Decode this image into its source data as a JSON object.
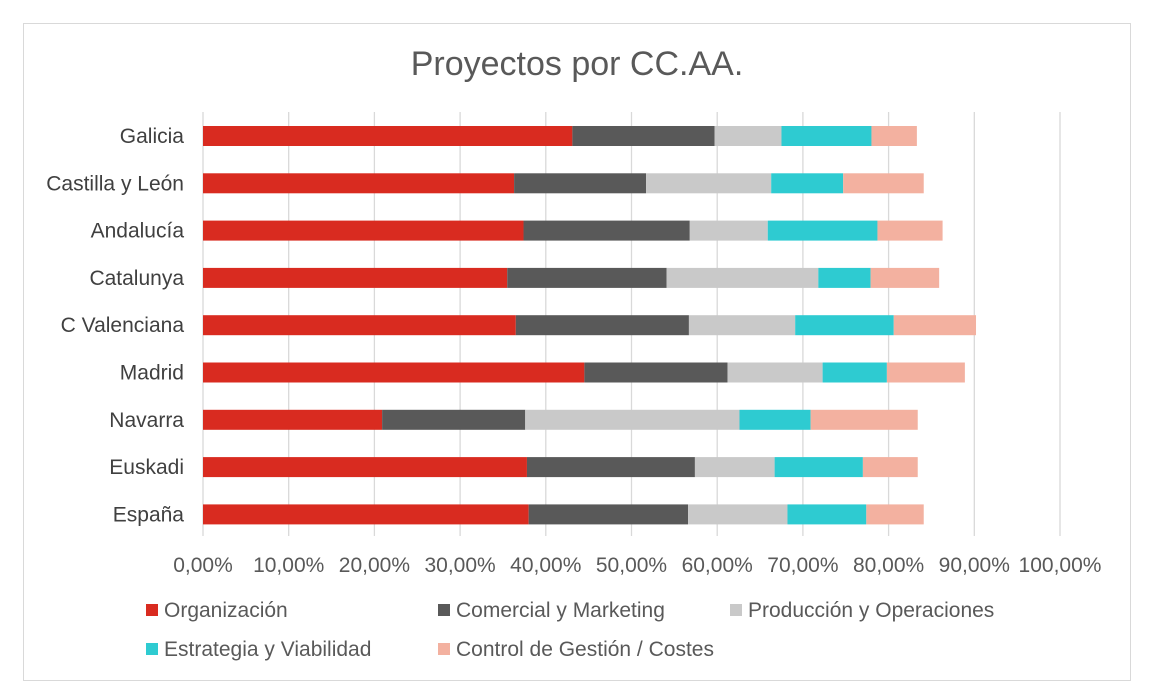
{
  "chart_data": {
    "type": "bar",
    "orientation": "horizontal",
    "stacked": true,
    "title": "Proyectos por CC.AA.",
    "categories": [
      "Galicia",
      "Castilla y León",
      "Andalucía",
      "Catalunya",
      "C Valenciana",
      "Madrid",
      "Navarra",
      "Euskadi",
      "España"
    ],
    "series": [
      {
        "name": "Organización",
        "color": "#d92b20",
        "values": [
          43.1,
          36.3,
          37.4,
          35.5,
          36.5,
          44.5,
          20.9,
          37.8,
          38.0
        ]
      },
      {
        "name": "Comercial y Marketing",
        "color": "#595959",
        "values": [
          16.6,
          15.4,
          19.4,
          18.6,
          20.2,
          16.7,
          16.7,
          19.6,
          18.6
        ]
      },
      {
        "name": "Producción y Operaciones",
        "color": "#c9c9c9",
        "values": [
          7.8,
          14.6,
          9.1,
          17.7,
          12.4,
          11.1,
          25.0,
          9.3,
          11.6
        ]
      },
      {
        "name": "Estrategia y Viabilidad",
        "color": "#2ecbd1",
        "values": [
          10.5,
          8.4,
          12.8,
          6.1,
          11.5,
          7.5,
          8.3,
          10.3,
          9.2
        ]
      },
      {
        "name": "Control de Gestión / Costes",
        "color": "#f3b1a0",
        "values": [
          5.3,
          9.4,
          7.6,
          8.0,
          9.6,
          9.1,
          12.5,
          6.4,
          6.7
        ]
      }
    ],
    "xlim": [
      0,
      100
    ],
    "xticks": [
      "0,00%",
      "10,00%",
      "20,00%",
      "30,00%",
      "40,00%",
      "50,00%",
      "60,00%",
      "70,00%",
      "80,00%",
      "90,00%",
      "100,00%"
    ],
    "grid": true,
    "legend_position": "bottom"
  }
}
